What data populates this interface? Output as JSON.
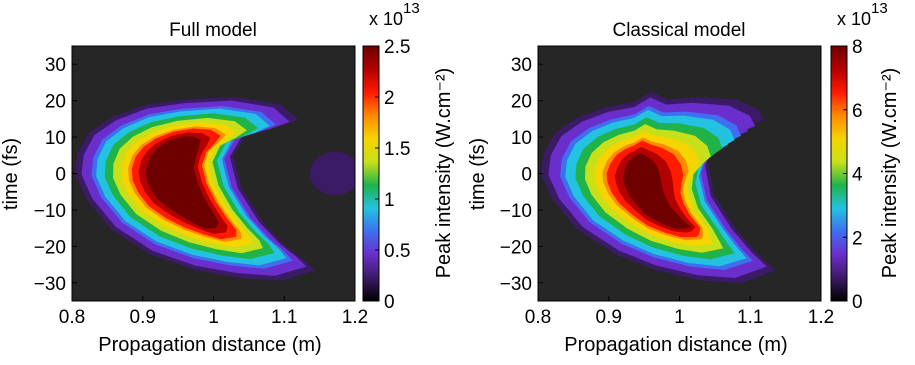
{
  "chart_data": [
    {
      "type": "heatmap",
      "title": "Full model",
      "xlabel": "Propagation distance (m)",
      "ylabel": "time (fs)",
      "xlim": [
        0.8,
        1.2
      ],
      "ylim": [
        -35,
        35
      ],
      "xticks": [
        "0.8",
        "0.9",
        "1",
        "1.1",
        "1.2"
      ],
      "yticks": [
        "30",
        "20",
        "10",
        "0",
        "−10",
        "−20",
        "−30"
      ],
      "colorbar": {
        "label": "Peak intensity (W.cm⁻²)",
        "scale_text": "x 10",
        "scale_exp": "13",
        "range": [
          0,
          2.5
        ],
        "ticks": [
          "2.5",
          "2",
          "1.5",
          "1",
          "0.5",
          "0"
        ]
      },
      "peak_value": 2.5,
      "peak_location": {
        "x": 0.96,
        "y": -5
      }
    },
    {
      "type": "heatmap",
      "title": "Classical model",
      "xlabel": "Propagation distance (m)",
      "ylabel": "time (fs)",
      "xlim": [
        0.8,
        1.2
      ],
      "ylim": [
        -35,
        35
      ],
      "xticks": [
        "0.8",
        "0.9",
        "1",
        "1.1",
        "1.2"
      ],
      "yticks": [
        "30",
        "20",
        "10",
        "0",
        "−10",
        "−20",
        "−30"
      ],
      "colorbar": {
        "label": "Peak intensity (W.cm⁻²)",
        "scale_text": "x 10",
        "scale_exp": "13",
        "range": [
          0,
          8
        ],
        "ticks": [
          "8",
          "6",
          "4",
          "2",
          "0"
        ]
      },
      "peak_value": 8,
      "peak_location": {
        "x": 0.96,
        "y": -17
      }
    }
  ],
  "colormap": [
    "#000000",
    "#3b1a66",
    "#6a2ecc",
    "#3f6ff0",
    "#22c2e0",
    "#1fb34a",
    "#c8e01a",
    "#f5d400",
    "#ff8a00",
    "#ff1a00",
    "#b30000",
    "#6e0000"
  ],
  "background_color": "#262626"
}
